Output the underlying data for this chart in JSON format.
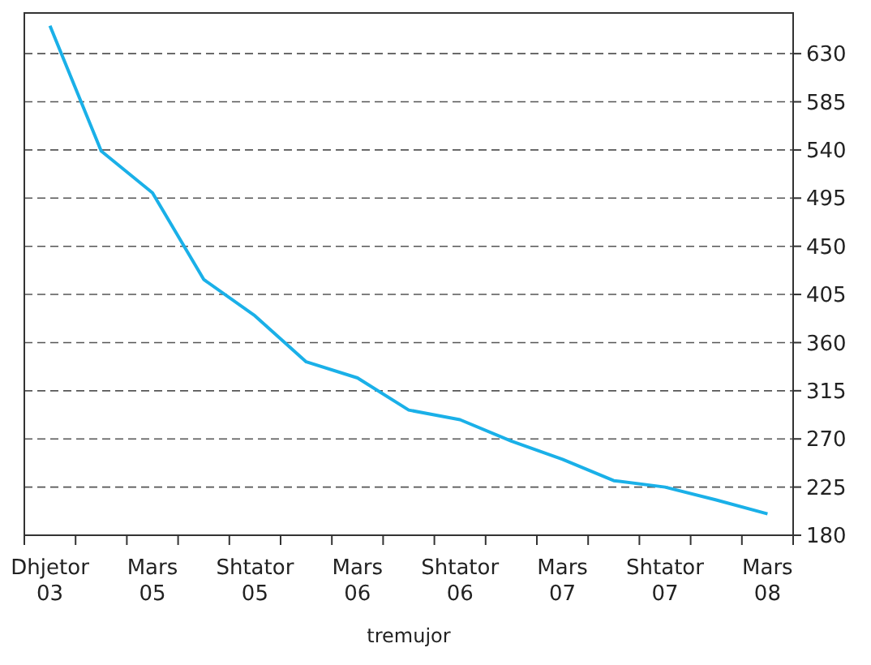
{
  "chart_data": {
    "type": "line",
    "xlabel": "tremujor",
    "categories": [
      "Dhjetor 03",
      null,
      "Mars 05",
      null,
      "Shtator 05",
      null,
      "Mars 06",
      null,
      "Shtator 06",
      null,
      "Mars 07",
      null,
      "Shtator 07",
      null,
      "Mars 08"
    ],
    "series": [
      {
        "color": "#1ab0e8",
        "values": [
          656,
          539,
          500,
          419,
          385,
          342,
          327,
          297,
          288,
          268,
          251,
          231,
          225,
          213,
          200
        ]
      }
    ],
    "ylim": [
      180,
      668
    ],
    "yticks": [
      180,
      225,
      270,
      315,
      360,
      405,
      450,
      495,
      540,
      585,
      630
    ],
    "grid": "y",
    "line_style": "solid",
    "marker": "none"
  }
}
